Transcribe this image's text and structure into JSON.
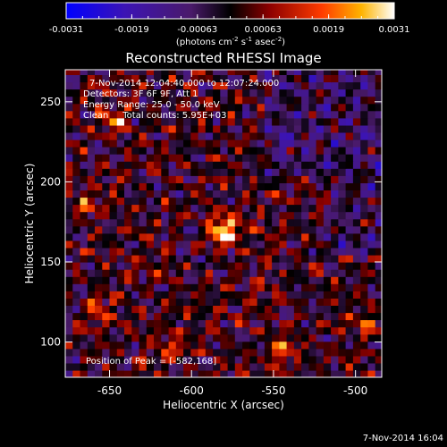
{
  "chart_data": {
    "type": "heatmap",
    "title": "Reconstructed RHESSI Image",
    "xlabel": "Heliocentric X (arcsec)",
    "ylabel": "Heliocentric Y (arcsec)",
    "xlim": [
      -677,
      -484
    ],
    "ylim": [
      78,
      270
    ],
    "xticks": [
      -650,
      -600,
      -550,
      -500
    ],
    "yticks": [
      100,
      150,
      200,
      250
    ],
    "colorbar": {
      "ticks": [
        "-0.0031",
        "-0.0019",
        "-0.00063",
        "0.00063",
        "0.0019",
        "0.0031"
      ],
      "range": [
        -0.0031,
        0.0031
      ],
      "units_main": "(photons cm",
      "units_exp1": "-2",
      "units_mid": " s",
      "units_exp2": "-1",
      "units_tail": " asec",
      "units_exp3": "-2",
      "units_close": ")"
    },
    "annotations": [
      "7-Nov-2014 12:04:40.000 to 12:07:24.000",
      "Detectors: 3F 6F 9F, Att 1",
      "Energy Range: 25.0 - 50.0 keV",
      "Clean     Total counts: 5.95E+03"
    ],
    "peak_label": "Position of Peak = [-582,168]",
    "peak": [
      -582,
      168
    ],
    "bright_sources": [
      {
        "x": -582,
        "y": 168,
        "value": 0.0031
      },
      {
        "x": -650,
        "y": 236,
        "value": 0.0022
      },
      {
        "x": -658,
        "y": 117,
        "value": 0.0019
      },
      {
        "x": -547,
        "y": 92,
        "value": 0.0014
      },
      {
        "x": -613,
        "y": 95,
        "value": 0.0013
      },
      {
        "x": -496,
        "y": 110,
        "value": 0.0012
      },
      {
        "x": -665,
        "y": 183,
        "value": 0.0012
      }
    ]
  },
  "footer": {
    "timestamp": "7-Nov-2014 16:04"
  },
  "colors": {
    "background": "#000000",
    "foreground": "#ffffff"
  }
}
